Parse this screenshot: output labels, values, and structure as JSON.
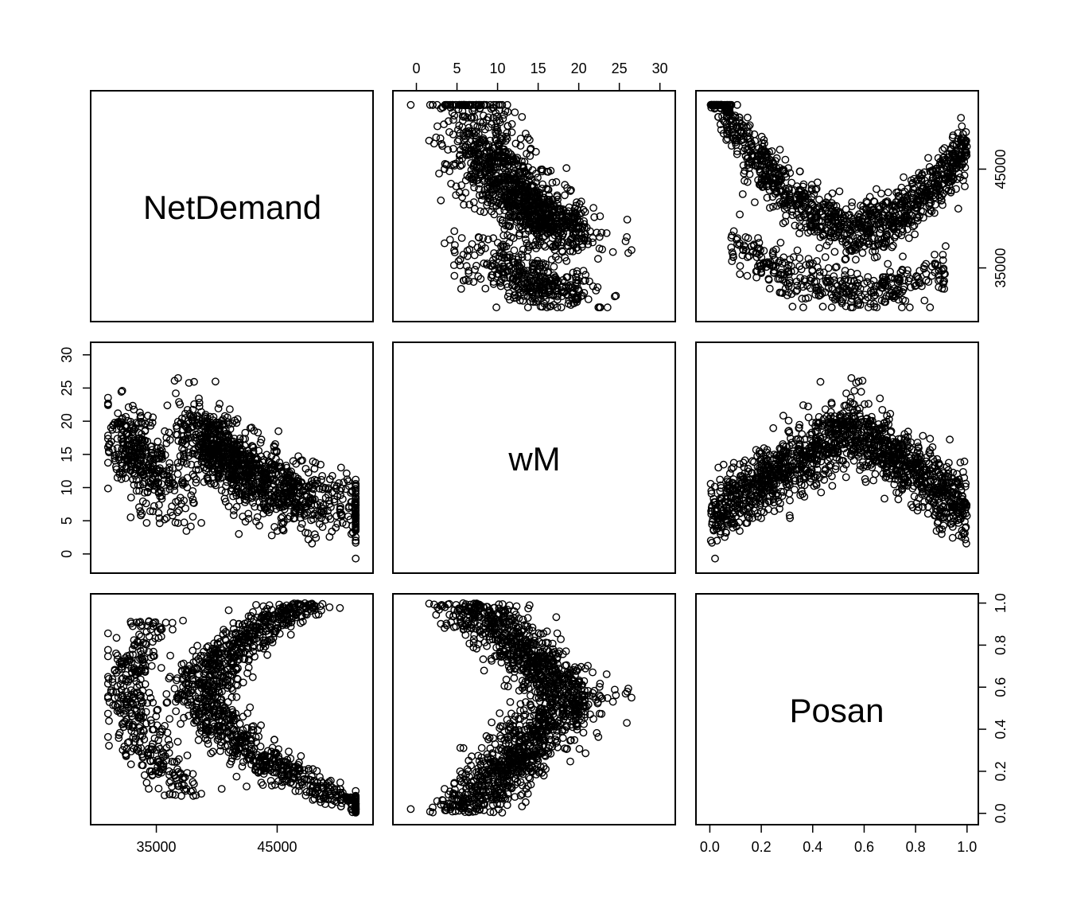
{
  "chart_data": {
    "type": "scatter",
    "title": "",
    "variables": [
      {
        "name": "NetDemand",
        "range": [
          30500,
          52000
        ]
      },
      {
        "name": "wM",
        "range": [
          -1.5,
          30.5
        ]
      },
      {
        "name": "Posan",
        "range": [
          -0.01,
          1.0
        ]
      }
    ],
    "ticks": {
      "NetDemand": {
        "values": [
          35000,
          45000
        ],
        "labels": [
          "35000",
          "45000"
        ],
        "right_labels": [
          "35000",
          "45000"
        ]
      },
      "wM": {
        "values": [
          0,
          5,
          10,
          15,
          20,
          25,
          30
        ],
        "labels": [
          "0",
          "5",
          "10",
          "15",
          "20",
          "25",
          "30"
        ]
      },
      "Posan": {
        "values": [
          0.0,
          0.2,
          0.4,
          0.6,
          0.8,
          1.0
        ],
        "labels": [
          "0.0",
          "0.2",
          "0.4",
          "0.6",
          "0.8",
          "1.0"
        ]
      }
    },
    "points_description_levels": {
      "upper_branch": {
        "demand_at_posan_0": 47000,
        "demand_at_posan_0.6": 39800,
        "demand_at_posan_1": 47000
      },
      "lower_branch": {
        "demand_at_posan_0.1": 37000,
        "demand_at_posan_0.6": 33000,
        "demand_at_posan_0.9": 37000
      },
      "wM_peak": {
        "posan": 0.55,
        "value": 19
      },
      "wM_trough": {
        "posan_ends": [
          0.0,
          1.0
        ],
        "value": 7
      }
    },
    "grid": false,
    "legend": "none"
  }
}
